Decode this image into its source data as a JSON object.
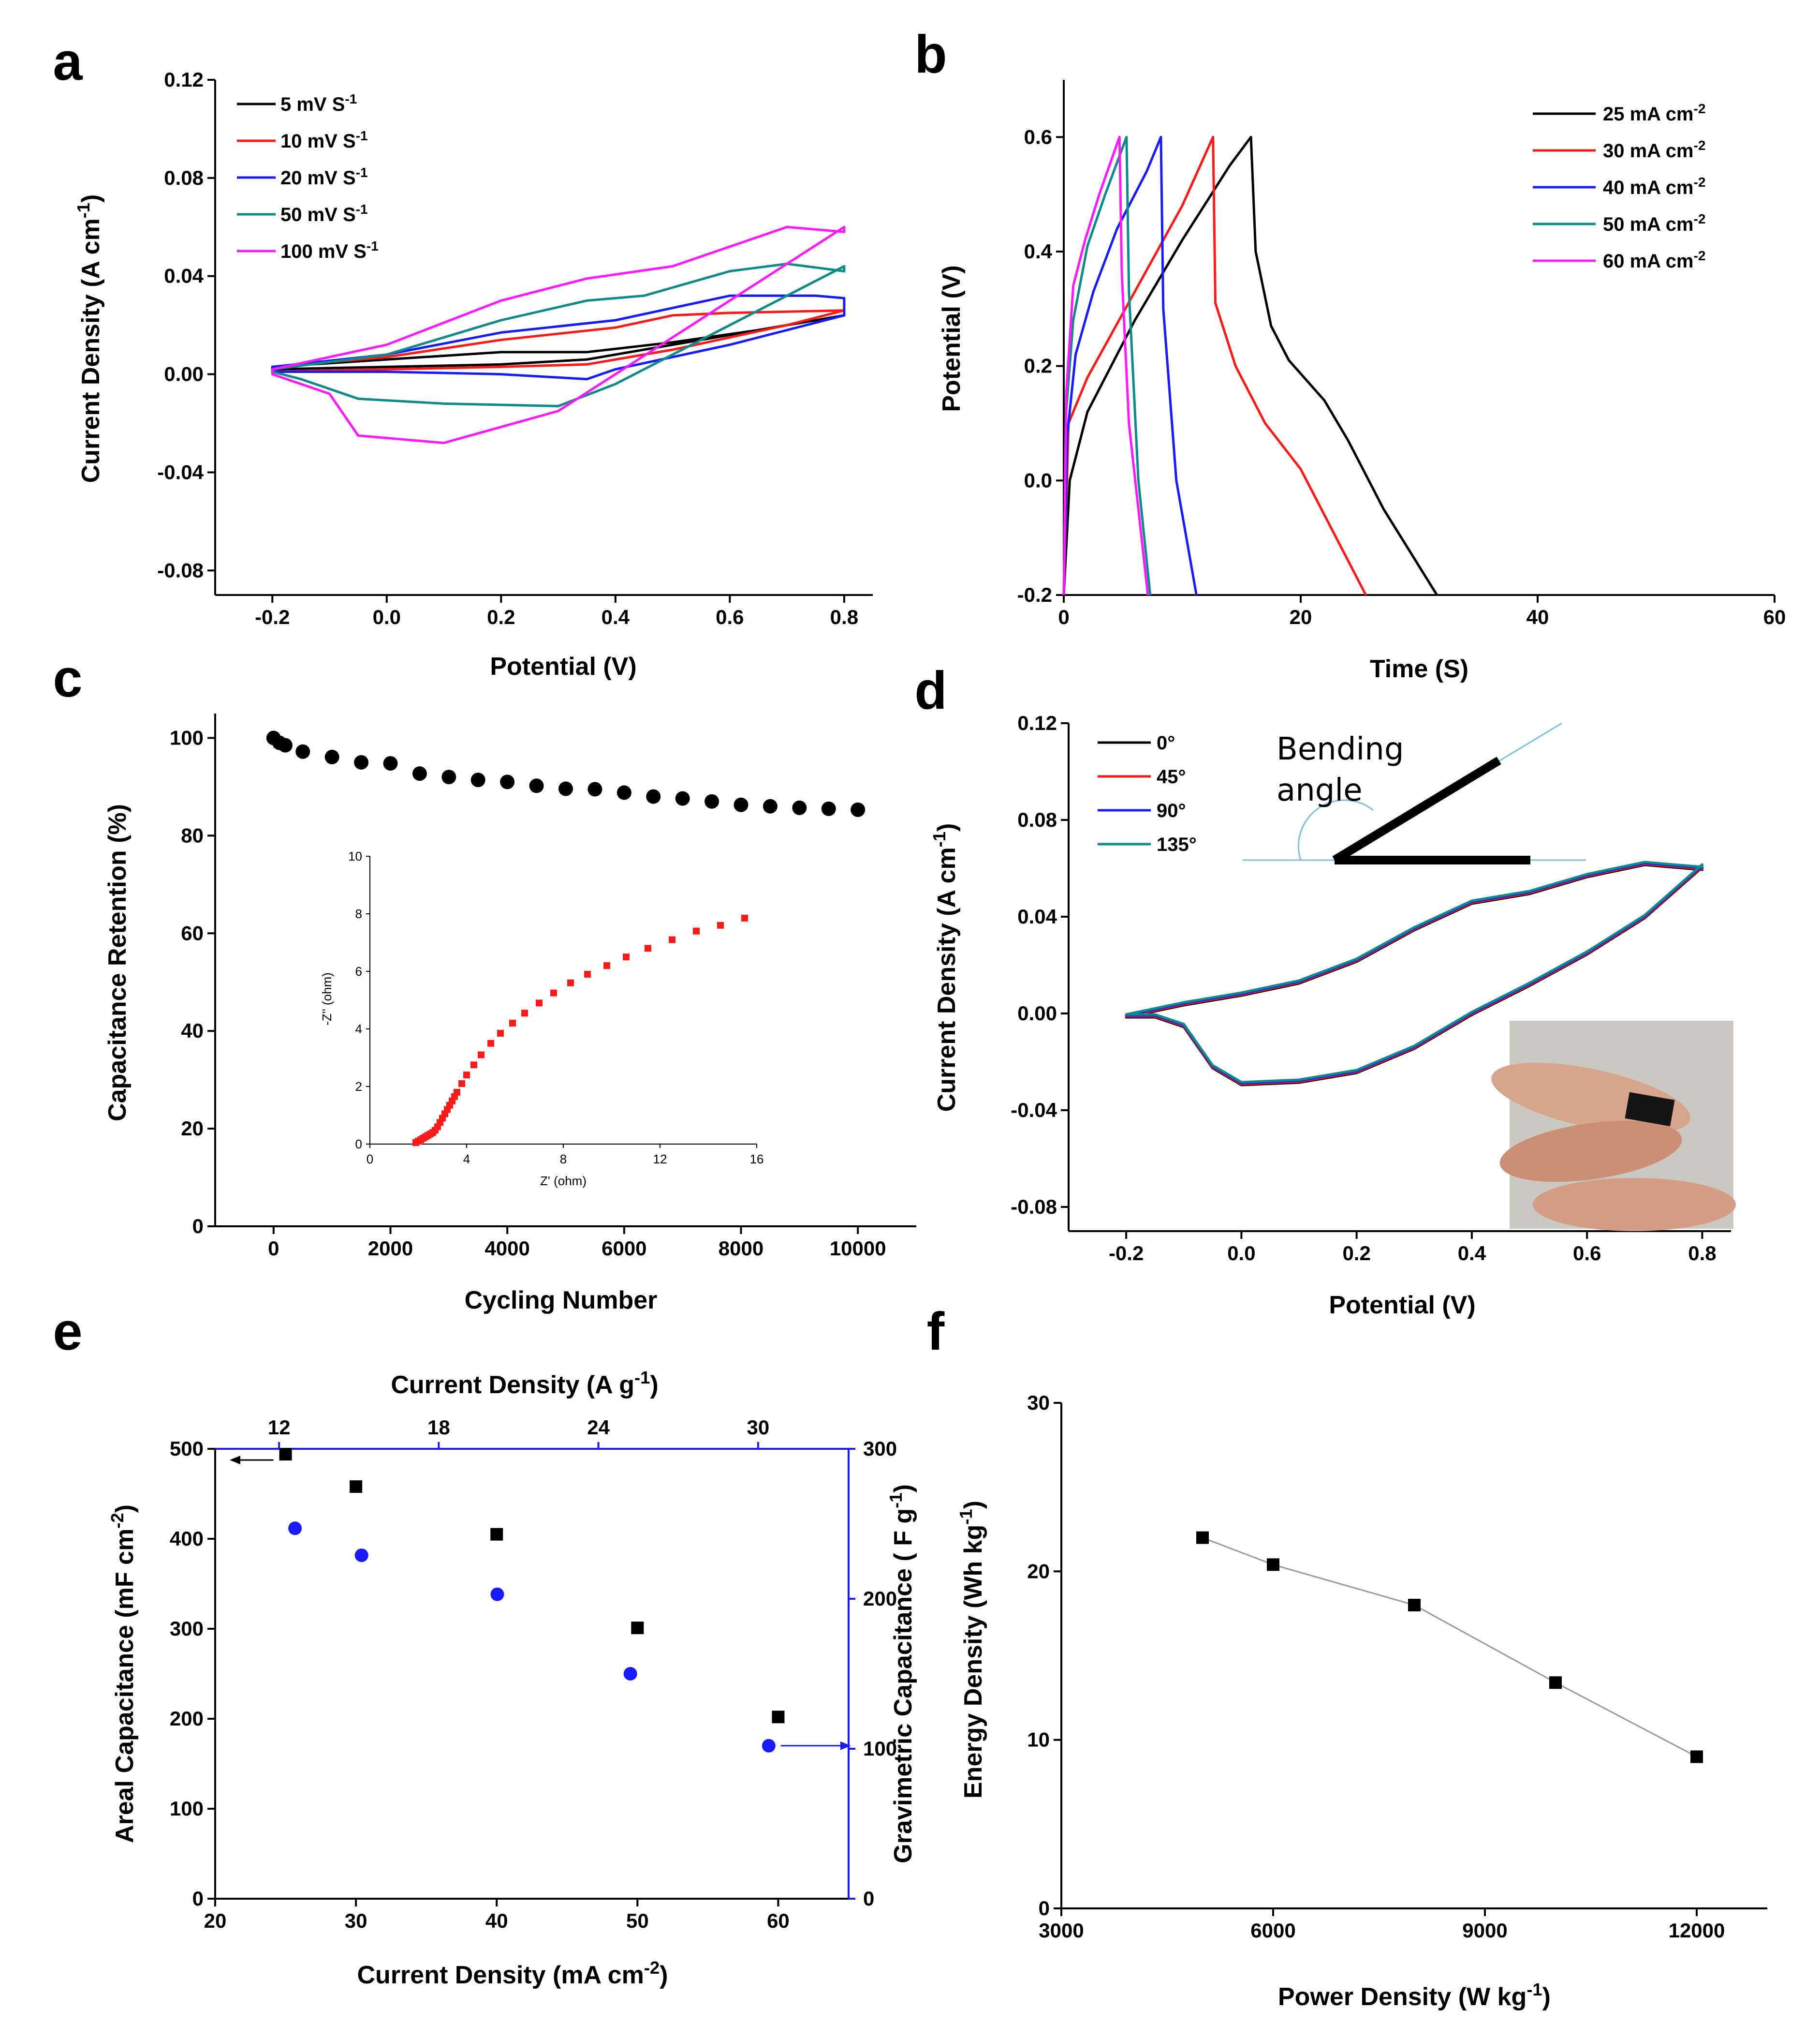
{
  "chart_data": [
    {
      "id": "a",
      "panel_label": "a",
      "type": "line",
      "xlabel": "Potential (V)",
      "ylabel": "Current Density (A cm",
      "ylabel_sup": "-1",
      "ylabel_end": ")",
      "xlim": [
        -0.3,
        0.85
      ],
      "ylim": [
        -0.09,
        0.12
      ],
      "xticks": [
        "-0.2",
        "0.0",
        "0.2",
        "0.4",
        "0.6",
        "0.8"
      ],
      "yticks": [
        "0.12",
        "0.08",
        "0.04",
        "0.00",
        "-0.04",
        "-0.08"
      ],
      "series": [
        {
          "name": "5 mV S",
          "sup": "-1",
          "color": "#000000",
          "x": [
            -0.2,
            0.0,
            0.2,
            0.35,
            0.5,
            0.65,
            0.8,
            0.8,
            0.7,
            0.5,
            0.35,
            0.2,
            0.0,
            -0.2,
            -0.2
          ],
          "y": [
            0.003,
            0.006,
            0.009,
            0.009,
            0.013,
            0.018,
            0.024,
            0.024,
            0.02,
            0.012,
            0.006,
            0.004,
            0.003,
            0.002,
            0.003
          ]
        },
        {
          "name": "10 mV S",
          "sup": "-1",
          "color": "#ff1a1a",
          "x": [
            -0.2,
            0.0,
            0.2,
            0.4,
            0.5,
            0.6,
            0.8,
            0.8,
            0.7,
            0.5,
            0.35,
            0.2,
            0.0,
            -0.2,
            -0.2
          ],
          "y": [
            0.003,
            0.007,
            0.014,
            0.019,
            0.024,
            0.025,
            0.026,
            0.026,
            0.02,
            0.01,
            0.004,
            0.003,
            0.002,
            0.001,
            0.003
          ]
        },
        {
          "name": "20 mV S",
          "sup": "-1",
          "color": "#1a1aff",
          "x": [
            -0.2,
            0.0,
            0.2,
            0.4,
            0.5,
            0.6,
            0.75,
            0.8,
            0.8,
            0.6,
            0.4,
            0.35,
            0.2,
            0.0,
            -0.2,
            -0.2
          ],
          "y": [
            0.003,
            0.008,
            0.017,
            0.022,
            0.027,
            0.032,
            0.032,
            0.031,
            0.024,
            0.012,
            0.002,
            -0.002,
            0.0,
            0.001,
            0.001,
            0.003
          ]
        },
        {
          "name": "50 mV S",
          "sup": "-1",
          "color": "#0f8a8a",
          "x": [
            -0.2,
            0.0,
            0.2,
            0.35,
            0.45,
            0.6,
            0.7,
            0.8,
            0.8,
            0.6,
            0.4,
            0.3,
            0.1,
            -0.05,
            -0.15,
            -0.2,
            -0.2
          ],
          "y": [
            0.002,
            0.008,
            0.022,
            0.03,
            0.032,
            0.042,
            0.045,
            0.042,
            0.044,
            0.02,
            -0.004,
            -0.013,
            -0.012,
            -0.01,
            -0.002,
            0.001,
            0.002
          ]
        },
        {
          "name": "100 mV S",
          "sup": "-1",
          "color": "#ff1aff",
          "x": [
            -0.2,
            0.0,
            0.2,
            0.35,
            0.5,
            0.6,
            0.7,
            0.8,
            0.8,
            0.6,
            0.4,
            0.3,
            0.1,
            -0.05,
            -0.1,
            -0.2,
            -0.2
          ],
          "y": [
            0.002,
            0.012,
            0.03,
            0.039,
            0.044,
            0.052,
            0.06,
            0.058,
            0.06,
            0.03,
            0.0,
            -0.015,
            -0.028,
            -0.025,
            -0.008,
            0.0,
            0.002
          ]
        }
      ]
    },
    {
      "id": "b",
      "panel_label": "b",
      "type": "line",
      "xlabel": "Time (S)",
      "ylabel": "Potential (V)",
      "xlim": [
        0,
        60
      ],
      "ylim": [
        -0.2,
        0.7
      ],
      "xticks": [
        "0",
        "20",
        "40",
        "60"
      ],
      "yticks": [
        "0.6",
        "0.4",
        "0.2",
        "0.0",
        "-0.2"
      ],
      "series": [
        {
          "name": "25 mA cm",
          "sup": "-2",
          "color": "#000000",
          "x": [
            0,
            0.5,
            2,
            6,
            10,
            14,
            15.8,
            16.2,
            17.5,
            19,
            22,
            24,
            27,
            31.5
          ],
          "y": [
            -0.2,
            0.0,
            0.12,
            0.28,
            0.42,
            0.55,
            0.6,
            0.4,
            0.27,
            0.21,
            0.14,
            0.07,
            -0.05,
            -0.2
          ]
        },
        {
          "name": "30 mA cm",
          "sup": "-2",
          "color": "#ff1a1a",
          "x": [
            0,
            0.4,
            2,
            6,
            10,
            12.6,
            12.8,
            14.5,
            17,
            20,
            25.5
          ],
          "y": [
            -0.2,
            0.1,
            0.18,
            0.33,
            0.48,
            0.6,
            0.31,
            0.2,
            0.1,
            0.02,
            -0.2
          ]
        },
        {
          "name": "40 mA cm",
          "sup": "-2",
          "color": "#1a1aff",
          "x": [
            0,
            0.3,
            1,
            2.5,
            4.5,
            7,
            8.2,
            8.4,
            9.5,
            11.2
          ],
          "y": [
            -0.2,
            0.08,
            0.22,
            0.33,
            0.44,
            0.54,
            0.6,
            0.3,
            0.0,
            -0.2
          ]
        },
        {
          "name": "50 mA cm",
          "sup": "-2",
          "color": "#0f8a8a",
          "x": [
            0,
            0.2,
            0.8,
            2,
            3.5,
            5.3,
            5.5,
            6.3,
            7.3
          ],
          "y": [
            -0.2,
            0.12,
            0.28,
            0.41,
            0.5,
            0.6,
            0.33,
            0.0,
            -0.2
          ]
        },
        {
          "name": "60 mA cm",
          "sup": "-2",
          "color": "#ff1aff",
          "x": [
            0,
            0.2,
            0.8,
            1.8,
            3,
            4.7,
            4.9,
            5.5,
            7.1
          ],
          "y": [
            -0.2,
            0.15,
            0.34,
            0.42,
            0.5,
            0.6,
            0.36,
            0.1,
            -0.2
          ]
        }
      ]
    },
    {
      "id": "c",
      "panel_label": "c",
      "type": "scatter",
      "xlabel": "Cycling Number",
      "ylabel": "Capacitance Retention (%)",
      "xlim": [
        -1000,
        11000
      ],
      "ylim": [
        0,
        105
      ],
      "xticks": [
        "0",
        "2000",
        "4000",
        "6000",
        "8000",
        "10000"
      ],
      "yticks": [
        "100",
        "80",
        "60",
        "40",
        "20",
        "0"
      ],
      "series": [
        {
          "name": "retention",
          "color": "#000000",
          "x": [
            0,
            100,
            200,
            500,
            1000,
            1500,
            2000,
            2500,
            3000,
            3500,
            4000,
            4500,
            5000,
            5500,
            6000,
            6500,
            7000,
            7500,
            8000,
            8500,
            9000,
            9500,
            10000
          ],
          "y": [
            100,
            99,
            98.5,
            97.2,
            96.1,
            95,
            94.8,
            92.7,
            92,
            91.4,
            91,
            90.2,
            89.6,
            89.5,
            88.8,
            88,
            87.6,
            87,
            86.3,
            86,
            85.7,
            85.5,
            85.3
          ]
        }
      ],
      "inset": {
        "xlabel": "Z' (ohm)",
        "ylabel": "-Z'' (ohm)",
        "xlim": [
          0,
          16
        ],
        "ylim": [
          0,
          10
        ],
        "xticks": [
          "0",
          "4",
          "8",
          "12",
          "16"
        ],
        "yticks": [
          "10",
          "8",
          "6",
          "4",
          "2",
          "0"
        ],
        "color": "#ff1a1a",
        "x": [
          1.9,
          2.0,
          2.1,
          2.2,
          2.3,
          2.4,
          2.5,
          2.6,
          2.7,
          2.8,
          2.9,
          3.0,
          3.1,
          3.2,
          3.3,
          3.4,
          3.5,
          3.6,
          3.8,
          4.0,
          4.3,
          4.6,
          5.0,
          5.4,
          5.9,
          6.4,
          7.0,
          7.6,
          8.3,
          9.0,
          9.8,
          10.6,
          11.5,
          12.5,
          13.5,
          14.5,
          15.5
        ],
        "y": [
          0.05,
          0.1,
          0.15,
          0.2,
          0.25,
          0.3,
          0.35,
          0.4,
          0.48,
          0.6,
          0.75,
          0.9,
          1.05,
          1.2,
          1.35,
          1.5,
          1.65,
          1.8,
          2.1,
          2.4,
          2.75,
          3.1,
          3.5,
          3.85,
          4.2,
          4.55,
          4.9,
          5.25,
          5.6,
          5.9,
          6.2,
          6.5,
          6.8,
          7.1,
          7.4,
          7.6,
          7.85
        ]
      }
    },
    {
      "id": "d",
      "panel_label": "d",
      "type": "line",
      "xlabel": "Potential (V)",
      "ylabel": "Current Density (A cm",
      "ylabel_sup": "-1",
      "ylabel_end": ")",
      "xlim": [
        -0.3,
        0.85
      ],
      "ylim": [
        -0.09,
        0.12
      ],
      "xticks": [
        "-0.2",
        "0.0",
        "0.2",
        "0.4",
        "0.6",
        "0.8"
      ],
      "yticks": [
        "0.12",
        "0.08",
        "0.04",
        "0.00",
        "-0.04",
        "-0.08"
      ],
      "annotation": [
        "Bending",
        "angle"
      ],
      "photo_inset": "hand bending device",
      "series": [
        {
          "name": "0°",
          "color": "#000000"
        },
        {
          "name": "45°",
          "color": "#ff1a1a"
        },
        {
          "name": "90°",
          "color": "#1a1aff"
        },
        {
          "name": "135°",
          "color": "#0f8a8a"
        }
      ],
      "curve": {
        "x": [
          -0.2,
          -0.1,
          0.0,
          0.1,
          0.2,
          0.3,
          0.4,
          0.5,
          0.6,
          0.7,
          0.8,
          0.8,
          0.7,
          0.6,
          0.5,
          0.4,
          0.3,
          0.2,
          0.1,
          0.0,
          -0.05,
          -0.1,
          -0.15,
          -0.2
        ],
        "y": [
          -0.001,
          0.004,
          0.008,
          0.013,
          0.022,
          0.035,
          0.046,
          0.05,
          0.057,
          0.062,
          0.06,
          0.061,
          0.04,
          0.025,
          0.012,
          0.0,
          -0.014,
          -0.024,
          -0.028,
          -0.029,
          -0.022,
          -0.005,
          -0.001,
          -0.001
        ]
      }
    },
    {
      "id": "e",
      "panel_label": "e",
      "type": "scatter",
      "xlabel": "Current Density (mA cm",
      "xlabel_sup": "-2",
      "xlabel_end": ")",
      "top_xlabel": "Current Density (A g",
      "top_xlabel_sup": "-1",
      "top_xlabel_end": ")",
      "ylabel": "Areal Capacitance (mF cm",
      "ylabel_sup": "-2",
      "ylabel_end": ")",
      "y2label": "Gravimetric Capacitance ( F g",
      "y2label_sup": "-1",
      "y2label_end": ")",
      "xlim": [
        20,
        65
      ],
      "ylim": [
        0,
        500
      ],
      "y2lim": [
        0,
        300
      ],
      "top_xlim": [
        9.6,
        33.4
      ],
      "xticks": [
        "20",
        "30",
        "40",
        "50",
        "60"
      ],
      "yticks": [
        "500",
        "400",
        "300",
        "200",
        "100",
        "0"
      ],
      "y2ticks": [
        "300",
        "200",
        "100",
        "0"
      ],
      "top_xticks": [
        "12",
        "18",
        "24",
        "30"
      ],
      "series": [
        {
          "name": "areal",
          "color": "#000000",
          "x": [
            25,
            30,
            40,
            50,
            60
          ],
          "y": [
            494,
            458,
            405,
            301,
            202
          ]
        },
        {
          "name": "gravimetric",
          "color": "#1a1aff",
          "top_x": [
            12.6,
            15.1,
            20.2,
            25.2,
            30.4
          ],
          "y2": [
            247,
            229,
            203,
            150,
            102
          ]
        }
      ]
    },
    {
      "id": "f",
      "panel_label": "f",
      "type": "line",
      "xlabel": "Power Density (W kg",
      "xlabel_sup": "-1",
      "xlabel_end": ")",
      "ylabel": "Energy Density (Wh kg",
      "ylabel_sup": "-1",
      "ylabel_end": ")",
      "xlim": [
        3000,
        13000
      ],
      "ylim": [
        0,
        30
      ],
      "xticks": [
        "3000",
        "6000",
        "9000",
        "12000"
      ],
      "yticks": [
        "30",
        "20",
        "10",
        "0"
      ],
      "series": [
        {
          "name": "energy",
          "color": "#000000",
          "x": [
            5000,
            6000,
            8000,
            10000,
            12000
          ],
          "y": [
            22,
            20.4,
            18,
            13.4,
            9
          ]
        }
      ]
    }
  ]
}
